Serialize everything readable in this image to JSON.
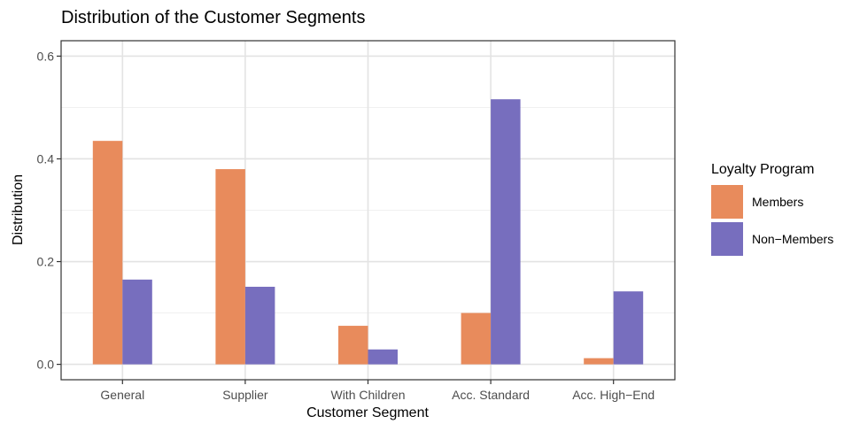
{
  "chart_data": {
    "type": "bar",
    "title": "Distribution of the Customer Segments",
    "xlabel": "Customer Segment",
    "ylabel": "Distribution",
    "categories": [
      "General",
      "Supplier",
      "With Children",
      "Acc. Standard",
      "Acc. High−End"
    ],
    "series": [
      {
        "name": "Members",
        "color": "#E88B5C",
        "values": [
          0.435,
          0.38,
          0.075,
          0.1,
          0.012
        ]
      },
      {
        "name": "Non−Members",
        "color": "#776EBE",
        "values": [
          0.165,
          0.151,
          0.029,
          0.516,
          0.142
        ]
      }
    ],
    "ylim": [
      -0.03,
      0.63
    ],
    "yticks": [
      0.0,
      0.2,
      0.4,
      0.6
    ],
    "ytick_labels": [
      "0.0",
      "0.2",
      "0.4",
      "0.6"
    ],
    "grid": true,
    "legend": {
      "title": "Loyalty Program",
      "position": "right"
    }
  }
}
